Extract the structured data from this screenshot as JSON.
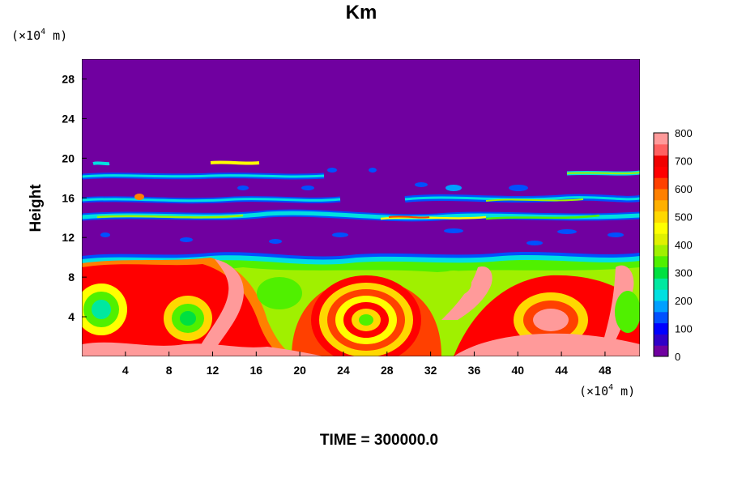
{
  "chart_data": {
    "type": "heatmap",
    "title": "Km",
    "ylabel": "Height",
    "x_unit": {
      "prefix": "(×10",
      "exp": "4",
      "suffix": " m)"
    },
    "y_unit": {
      "prefix": "(×10",
      "exp": "4",
      "suffix": " m)"
    },
    "x_ticks": [
      "4",
      "8",
      "12",
      "16",
      "20",
      "24",
      "28",
      "32",
      "36",
      "40",
      "44",
      "48"
    ],
    "y_ticks": [
      "4",
      "8",
      "12",
      "16",
      "20",
      "24",
      "28"
    ],
    "xlim": [
      0,
      51.2
    ],
    "ylim": [
      0,
      30
    ],
    "colorbar": {
      "min": 0,
      "max": 800,
      "ticks": [
        "0",
        "100",
        "200",
        "300",
        "400",
        "500",
        "600",
        "700",
        "800"
      ],
      "colors": [
        "#7000a0",
        "#3000c8",
        "#0000ff",
        "#0050ff",
        "#00a0ff",
        "#00e0e0",
        "#00e8a0",
        "#00e040",
        "#50f000",
        "#a0f000",
        "#e0f000",
        "#ffff00",
        "#ffd800",
        "#ffb000",
        "#ff8000",
        "#ff4000",
        "#ff0000",
        "#f00000",
        "#ff6060",
        "#ff9a9a"
      ]
    },
    "time_label": "TIME = 300000.0"
  }
}
